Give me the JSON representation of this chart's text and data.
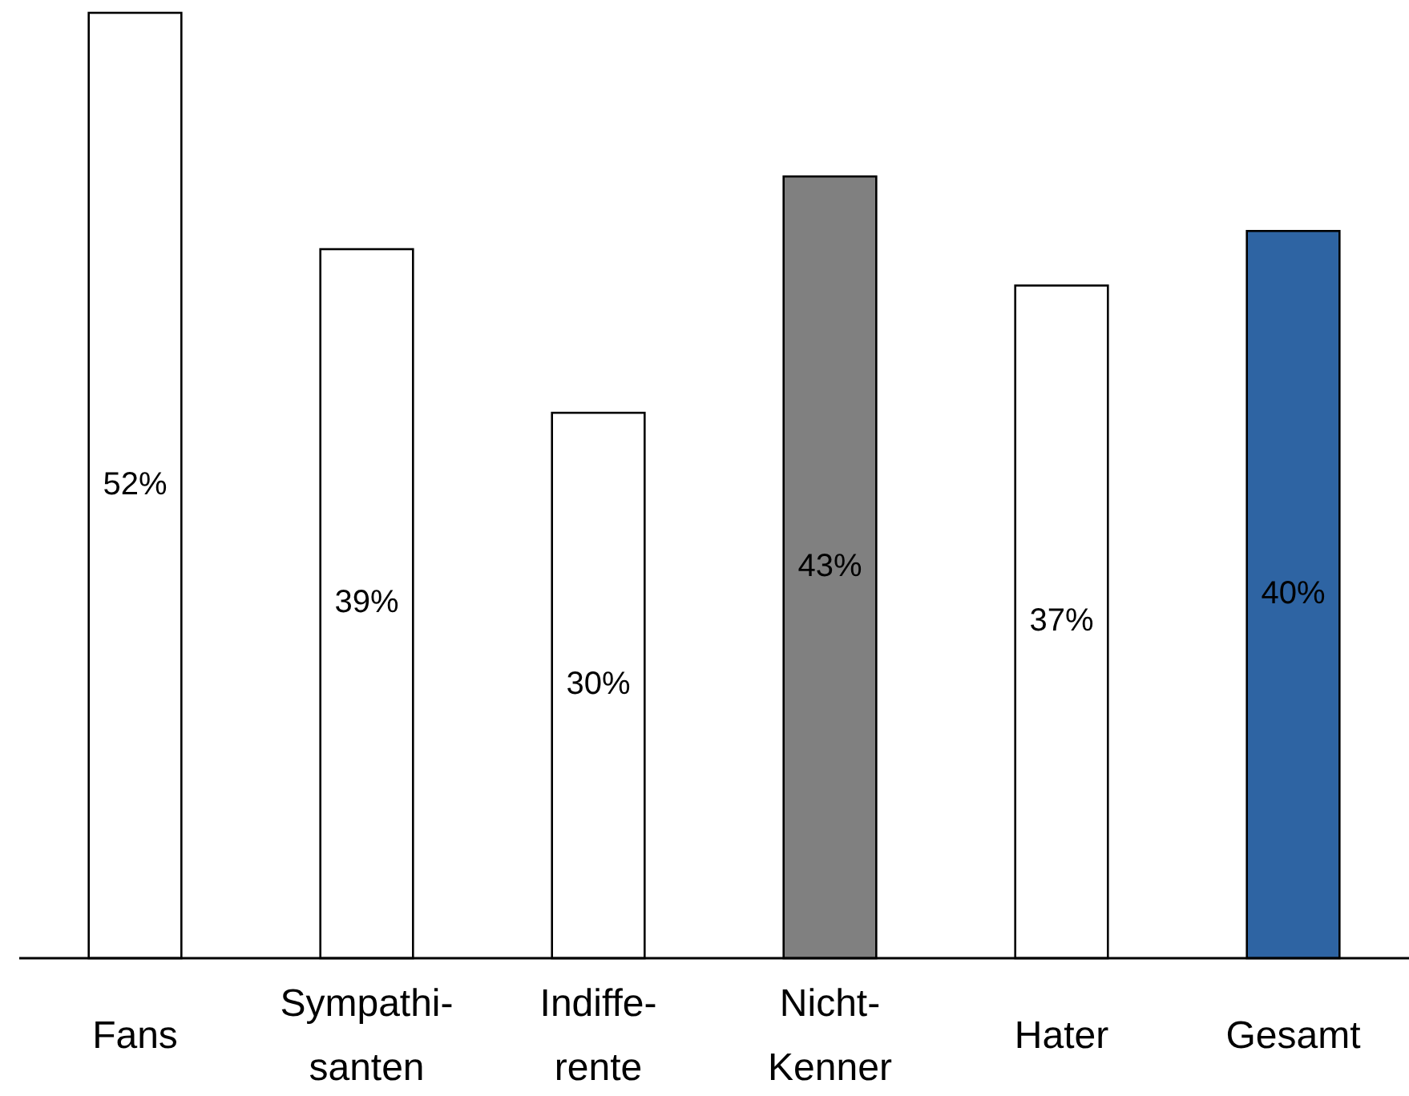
{
  "chart_data": {
    "type": "bar",
    "categories": [
      "Fans",
      "Sympathi-\nsanten",
      "Indiffe-\nrente",
      "Nicht-\nKenner",
      "Hater",
      "Gesamt"
    ],
    "values": [
      52,
      39,
      30,
      43,
      37,
      40
    ],
    "colors": [
      "#ffffff",
      "#ffffff",
      "#ffffff",
      "#808080",
      "#ffffff",
      "#2e64a3"
    ],
    "value_labels": [
      "52%",
      "39%",
      "30%",
      "43%",
      "37%",
      "40%"
    ]
  }
}
